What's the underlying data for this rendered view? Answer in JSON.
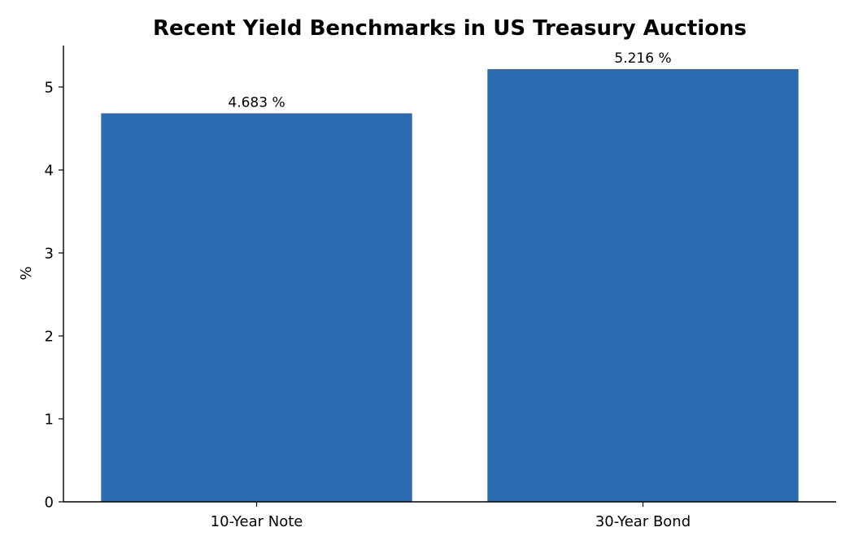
{
  "chart_data": {
    "type": "bar",
    "title": "Recent Yield Benchmarks in US Treasury Auctions",
    "xlabel": "",
    "ylabel": "%",
    "categories": [
      "10-Year Note",
      "30-Year Bond"
    ],
    "values": [
      4.683,
      5.216
    ],
    "data_labels": [
      "4.683 %",
      "5.216 %"
    ],
    "ylim": [
      0,
      5.5
    ],
    "yticks": [
      0,
      1,
      2,
      3,
      4,
      5
    ],
    "grid": false,
    "legend": "none",
    "colors": {
      "bar": "#2c6bb0",
      "axis": "#000000"
    }
  }
}
